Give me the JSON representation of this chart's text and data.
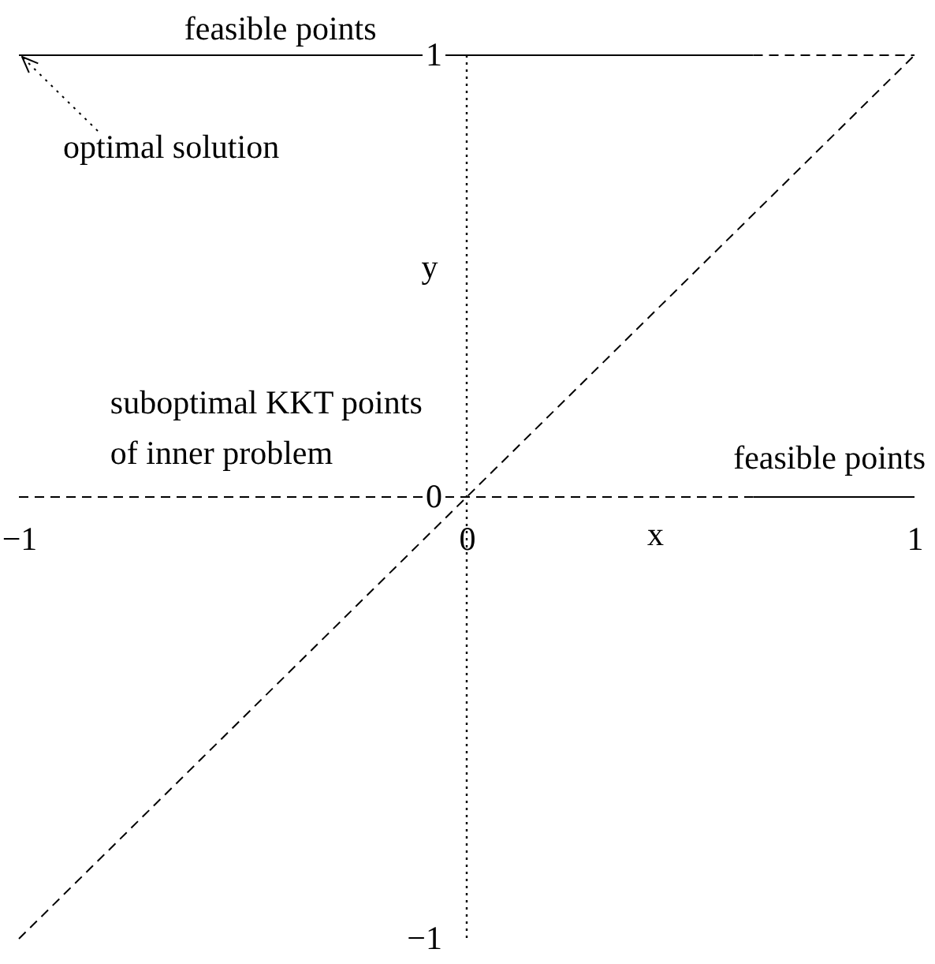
{
  "chart_data": {
    "type": "line",
    "xlabel": "x",
    "ylabel": "y",
    "series": [
      {
        "color": "#000000",
        "line_style": "solid",
        "x": [
          -1,
          0.64
        ],
        "values": [
          1,
          1
        ]
      },
      {
        "color": "#000000",
        "line_style": "dashed",
        "x": [
          0.64,
          1
        ],
        "values": [
          1,
          1
        ]
      },
      {
        "color": "#000000",
        "line_style": "dashed",
        "x": [
          -1,
          1
        ],
        "values": [
          -1,
          1
        ]
      },
      {
        "color": "#000000",
        "line_style": "dashed",
        "x": [
          -1,
          0.64
        ],
        "values": [
          0,
          0
        ]
      },
      {
        "color": "#000000",
        "line_style": "solid",
        "x": [
          0.64,
          1
        ],
        "values": [
          0,
          0
        ]
      }
    ],
    "xlim": [
      -1,
      1
    ],
    "ylim": [
      -1,
      1
    ],
    "xticks": [
      -1,
      0,
      1
    ],
    "yticks": [
      -1,
      0,
      1
    ],
    "ref_lines": [
      {
        "axis": "x",
        "value": 0,
        "line_style": "dotted",
        "color": "#000000"
      }
    ],
    "annotations": [
      "feasible points",
      {
        "text": "optimal solution",
        "x": -1,
        "y": 1
      },
      "suboptimal KKT points\nof inner problem",
      "feasible points"
    ]
  }
}
